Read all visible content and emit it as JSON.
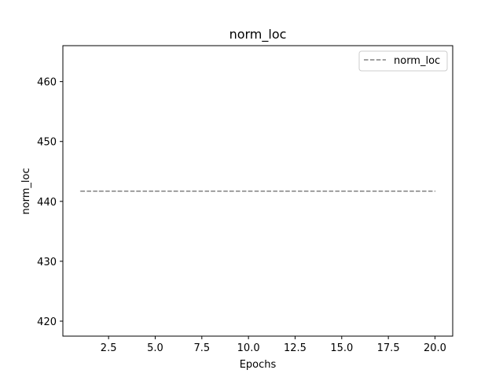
{
  "chart_data": {
    "type": "line",
    "title": "norm_loc",
    "xlabel": "Epochs",
    "ylabel": "norm_loc",
    "xlim": [
      0.05,
      20.95
    ],
    "ylim": [
      417.5,
      466.0
    ],
    "xticks": [
      2.5,
      5.0,
      7.5,
      10.0,
      12.5,
      15.0,
      17.5,
      20.0
    ],
    "xtick_labels": [
      "2.5",
      "5.0",
      "7.5",
      "10.0",
      "12.5",
      "15.0",
      "17.5",
      "20.0"
    ],
    "yticks": [
      420,
      430,
      440,
      450,
      460
    ],
    "ytick_labels": [
      "420",
      "430",
      "440",
      "450",
      "460"
    ],
    "grid": false,
    "legend": {
      "position": "top-right",
      "entries": [
        "norm_loc"
      ]
    },
    "series": [
      {
        "name": "norm_loc",
        "color": "#808080",
        "line_style": "dashed",
        "x": [
          1,
          2,
          3,
          4,
          5,
          6,
          7,
          8,
          9,
          10,
          11,
          12,
          13,
          14,
          15,
          16,
          17,
          18,
          19,
          20
        ],
        "y": [
          441.7,
          441.7,
          441.7,
          441.7,
          441.7,
          441.7,
          441.7,
          441.7,
          441.7,
          441.7,
          441.7,
          441.7,
          441.7,
          441.7,
          441.7,
          441.7,
          441.7,
          441.7,
          441.7,
          441.7
        ]
      }
    ]
  }
}
